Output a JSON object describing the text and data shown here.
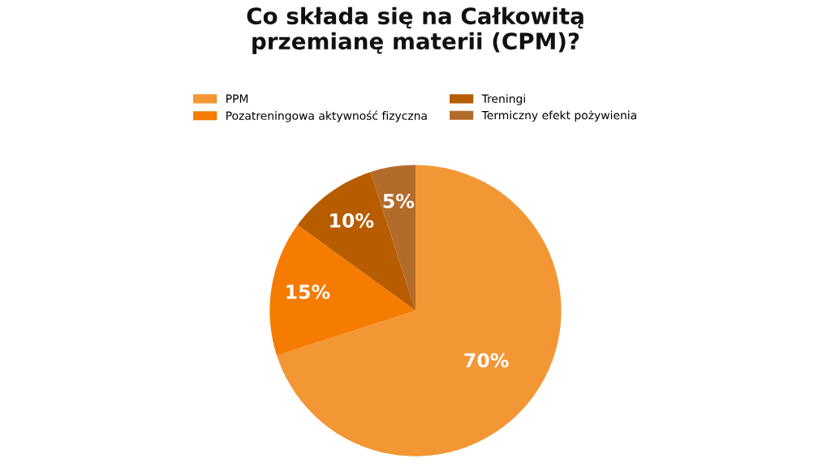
{
  "chart_data": {
    "type": "pie",
    "title": "Co składa się na Całkowitą\nprzemianę materii (CPM)?",
    "categories": [
      "PPM",
      "Pozatreningowa aktywność fizyczna",
      "Treningi",
      "Termiczny efekt pożywienia"
    ],
    "values": [
      70,
      15,
      10,
      5
    ],
    "colors": [
      "#f39634",
      "#f57c00",
      "#b85c00",
      "#b36b2b"
    ],
    "value_labels": [
      "70%",
      "15%",
      "10%",
      "5%"
    ],
    "legend": "top"
  }
}
